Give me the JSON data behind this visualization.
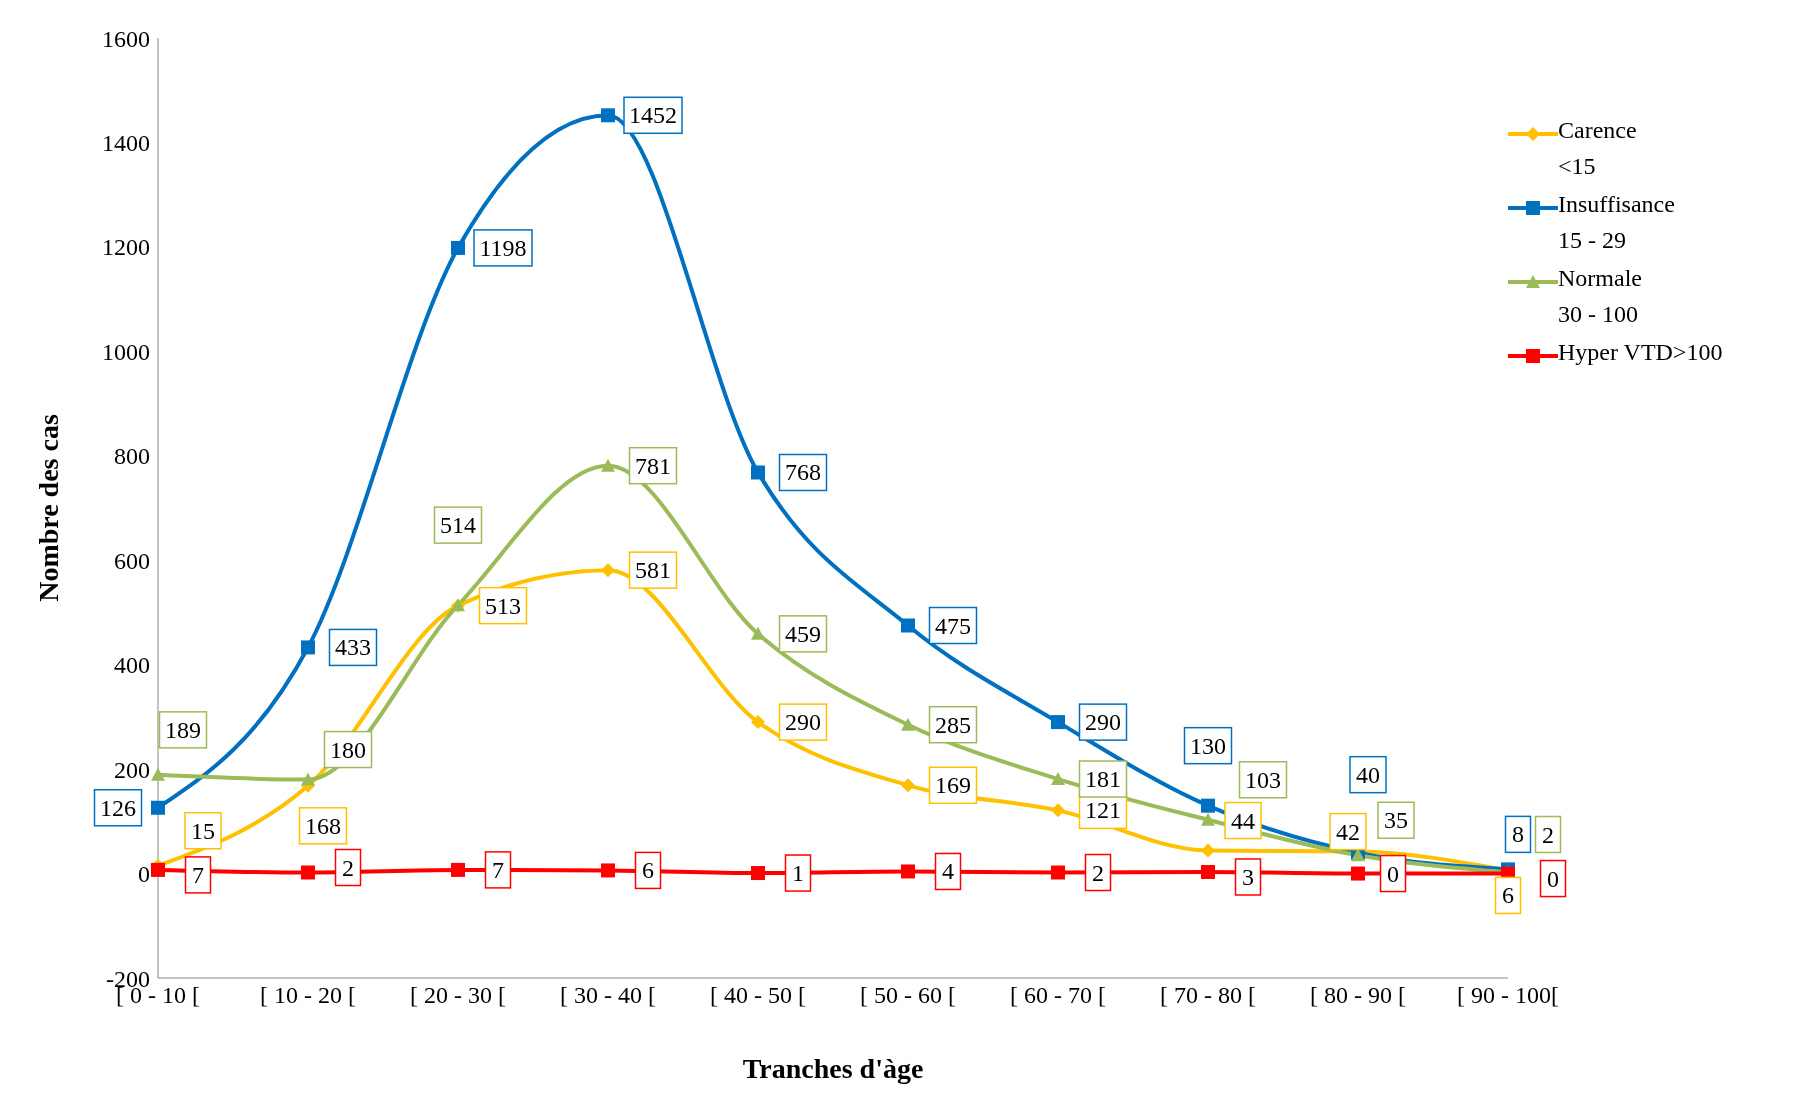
{
  "chart_data": {
    "type": "line",
    "xlabel": "Tranches d'àge",
    "ylabel": "Nombre des cas",
    "categories": [
      "[ 0 - 10 [",
      "[ 10 - 20 [",
      "[ 20 - 30 [",
      "[ 30 - 40 [",
      "[ 40 - 50 [",
      "[ 50 - 60 [",
      "[ 60 - 70 [",
      "[ 70 - 80 [",
      "[ 80 - 90 [",
      "[ 90 - 100["
    ],
    "series": [
      {
        "name": "Carence\n<15",
        "color": "#ffc000",
        "marker": "diamond",
        "values": [
          15,
          168,
          513,
          581,
          290,
          169,
          121,
          44,
          42,
          6
        ]
      },
      {
        "name": "Insuffisance\n15 - 29",
        "color": "#0070c0",
        "marker": "square",
        "values": [
          126,
          433,
          1198,
          1452,
          768,
          475,
          290,
          130,
          40,
          8
        ]
      },
      {
        "name": "Normale\n30 - 100",
        "color": "#9bbb59",
        "marker": "triangle",
        "values": [
          189,
          180,
          514,
          781,
          459,
          285,
          181,
          103,
          35,
          2
        ]
      },
      {
        "name": "Hyper VTD>100",
        "color": "#ff0000",
        "marker": "square",
        "values": [
          7,
          2,
          7,
          6,
          1,
          4,
          2,
          3,
          0,
          0
        ]
      }
    ],
    "ylim": [
      -200,
      1600
    ],
    "yticks": [
      -200,
      0,
      200,
      400,
      600,
      800,
      1000,
      1200,
      1400,
      1600
    ],
    "grid": false,
    "legend": "right",
    "data_labels": true
  }
}
